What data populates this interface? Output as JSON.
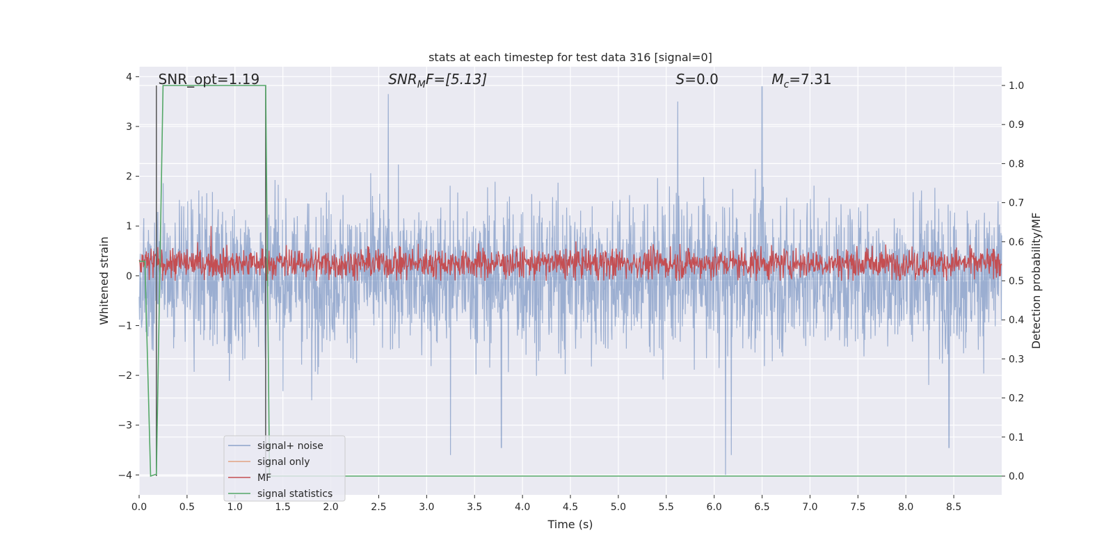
{
  "chart_data": {
    "type": "line",
    "title": "stats at each timestep for test data 316 [signal=0]",
    "xlabel": "Time (s)",
    "ylabel": "Whitened strain",
    "ylabel_right": "Detection probability/MF",
    "xlim": [
      0.0,
      9.0
    ],
    "ylim": [
      -4.4,
      4.2
    ],
    "ylim_right": [
      -0.048,
      1.048
    ],
    "xticks": [
      0.0,
      0.5,
      1.0,
      1.5,
      2.0,
      2.5,
      3.0,
      3.5,
      4.0,
      4.5,
      5.0,
      5.5,
      6.0,
      6.5,
      7.0,
      7.5,
      8.0,
      8.5
    ],
    "xtick_labels": [
      "0.0",
      "0.5",
      "1.0",
      "1.5",
      "2.0",
      "2.5",
      "3.0",
      "3.5",
      "4.0",
      "4.5",
      "5.0",
      "5.5",
      "6.0",
      "6.5",
      "7.0",
      "7.5",
      "8.0",
      "8.5"
    ],
    "yticks": [
      -4,
      -3,
      -2,
      -1,
      0,
      1,
      2,
      3,
      4
    ],
    "ytick_labels": [
      "−4",
      "−3",
      "−2",
      "−1",
      "0",
      "1",
      "2",
      "3",
      "4"
    ],
    "yticks_right": [
      0.0,
      0.1,
      0.2,
      0.3,
      0.4,
      0.5,
      0.6,
      0.7,
      0.8,
      0.9,
      1.0
    ],
    "ytick_labels_right": [
      "0.0",
      "0.1",
      "0.2",
      "0.3",
      "0.4",
      "0.5",
      "0.6",
      "0.7",
      "0.8",
      "0.9",
      "1.0"
    ],
    "grid": true,
    "legend_position": "lower-left",
    "annotations": [
      {
        "label": "SNR_opt=1.19",
        "t": 0.2
      },
      {
        "label_parts": [
          "SNR",
          "M",
          "F=[5.13]"
        ],
        "t": 2.6
      },
      {
        "label_parts": [
          "S",
          "=0.0"
        ],
        "t": 5.6
      },
      {
        "label_parts": [
          "M",
          "c",
          "=7.31"
        ],
        "t": 6.6
      }
    ],
    "vertical_lines": [
      {
        "t": 0.18,
        "y_right": [
          0.0,
          1.0
        ]
      },
      {
        "t": 1.32,
        "y_right": [
          0.0,
          1.0
        ]
      }
    ],
    "series": [
      {
        "name": "signal+ noise",
        "color": "#4c72b0",
        "opacity": 0.5,
        "noise_std": 1.0,
        "range": [
          -4.0,
          3.8
        ],
        "peaks": [
          {
            "t": 2.6,
            "v": 3.65
          },
          {
            "t": 5.62,
            "v": 3.5
          },
          {
            "t": 6.5,
            "v": 3.85
          },
          {
            "t": 6.12,
            "v": -4.0
          },
          {
            "t": 6.18,
            "v": -3.6
          },
          {
            "t": 3.25,
            "v": -3.6
          },
          {
            "t": 8.45,
            "v": -3.45
          },
          {
            "t": 3.78,
            "v": -3.45
          },
          {
            "t": 1.8,
            "v": -2.5
          }
        ]
      },
      {
        "name": "signal only",
        "color": "#dd8452",
        "values": [
          0.0,
          0.0
        ]
      },
      {
        "name": "MF",
        "color": "#c44e52",
        "axis": "right",
        "baseline": 0.545,
        "range": [
          0.5,
          0.62
        ],
        "peaks": [
          {
            "t": 0.75,
            "v": 0.64
          }
        ]
      },
      {
        "name": "signal statistics",
        "color": "#55a868",
        "axis": "right",
        "x": [
          0.0,
          0.06,
          0.12,
          0.18,
          0.25,
          0.3,
          1.3,
          1.32,
          1.36,
          1.42,
          9.0
        ],
        "values": [
          0.55,
          0.55,
          0.0,
          0.005,
          1.0,
          1.0,
          1.0,
          1.0,
          0.0,
          0.0,
          0.0
        ]
      }
    ]
  }
}
